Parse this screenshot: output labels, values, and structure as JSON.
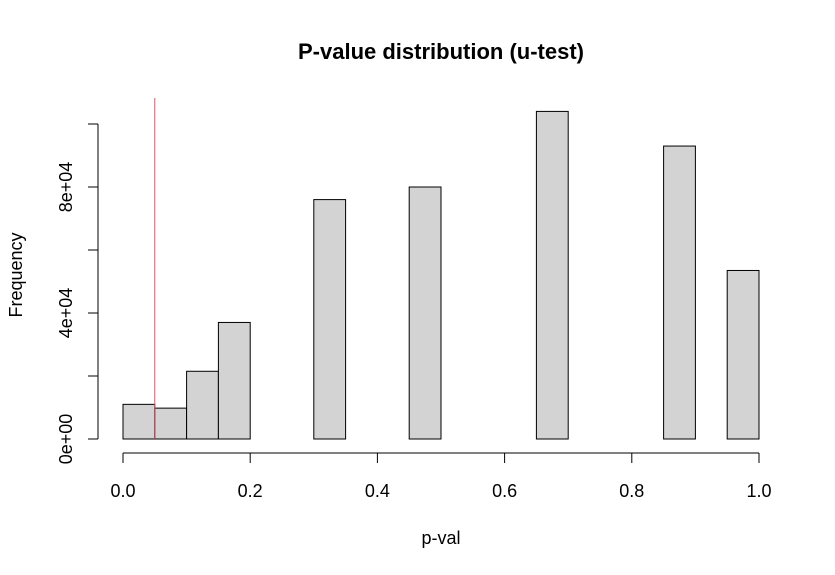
{
  "chart_data": {
    "type": "bar",
    "title": "P-value distribution (u-test)",
    "xlabel": "p-val",
    "ylabel": "Frequency",
    "xlim": [
      0,
      1
    ],
    "ylim": [
      0,
      100000
    ],
    "x_ticks": [
      {
        "value": 0.0,
        "label": "0.0"
      },
      {
        "value": 0.2,
        "label": "0.2"
      },
      {
        "value": 0.4,
        "label": "0.4"
      },
      {
        "value": 0.6,
        "label": "0.6"
      },
      {
        "value": 0.8,
        "label": "0.8"
      },
      {
        "value": 1.0,
        "label": "1.0"
      }
    ],
    "y_ticks": [
      {
        "value": 0,
        "label": "0e+00"
      },
      {
        "value": 20000,
        "label": ""
      },
      {
        "value": 40000,
        "label": "4e+04"
      },
      {
        "value": 60000,
        "label": ""
      },
      {
        "value": 80000,
        "label": "8e+04"
      },
      {
        "value": 100000,
        "label": ""
      }
    ],
    "bins": [
      {
        "x0": 0.0,
        "x1": 0.05,
        "count": 11000
      },
      {
        "x0": 0.05,
        "x1": 0.1,
        "count": 9800
      },
      {
        "x0": 0.1,
        "x1": 0.15,
        "count": 21500
      },
      {
        "x0": 0.15,
        "x1": 0.2,
        "count": 37000
      },
      {
        "x0": 0.2,
        "x1": 0.25,
        "count": 0
      },
      {
        "x0": 0.25,
        "x1": 0.3,
        "count": 0
      },
      {
        "x0": 0.3,
        "x1": 0.35,
        "count": 76000
      },
      {
        "x0": 0.35,
        "x1": 0.4,
        "count": 0
      },
      {
        "x0": 0.4,
        "x1": 0.45,
        "count": 0
      },
      {
        "x0": 0.45,
        "x1": 0.5,
        "count": 80000
      },
      {
        "x0": 0.5,
        "x1": 0.55,
        "count": 0
      },
      {
        "x0": 0.55,
        "x1": 0.6,
        "count": 0
      },
      {
        "x0": 0.6,
        "x1": 0.65,
        "count": 0
      },
      {
        "x0": 0.65,
        "x1": 0.7,
        "count": 104000
      },
      {
        "x0": 0.7,
        "x1": 0.75,
        "count": 0
      },
      {
        "x0": 0.75,
        "x1": 0.8,
        "count": 0
      },
      {
        "x0": 0.8,
        "x1": 0.85,
        "count": 0
      },
      {
        "x0": 0.85,
        "x1": 0.9,
        "count": 93000
      },
      {
        "x0": 0.9,
        "x1": 0.95,
        "count": 0
      },
      {
        "x0": 0.95,
        "x1": 1.0,
        "count": 53500
      }
    ],
    "reference_line": {
      "x": 0.05,
      "color": "#df536b"
    },
    "bar_color": "#d3d3d3",
    "grid": false,
    "legend": "none"
  }
}
